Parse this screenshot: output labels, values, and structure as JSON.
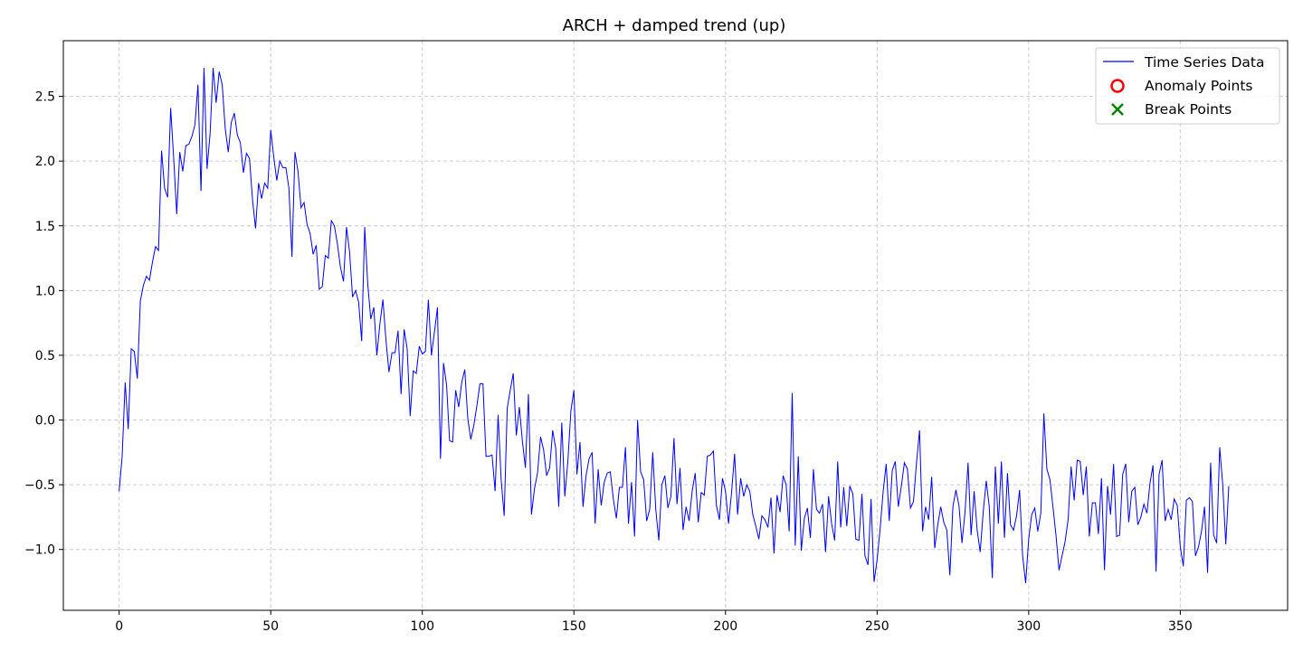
{
  "chart_data": {
    "type": "line",
    "title": "ARCH + damped trend (up)",
    "xlabel": "",
    "ylabel": "",
    "xlim": [
      -18.4,
      385.4
    ],
    "ylim": [
      -1.47,
      2.93
    ],
    "xticks": [
      0,
      50,
      100,
      150,
      200,
      250,
      300,
      350
    ],
    "yticks": [
      -1.0,
      -0.5,
      0.0,
      0.5,
      1.0,
      1.5,
      2.0,
      2.5
    ],
    "grid": true,
    "legend_position": "top-right",
    "colors": {
      "series": "#0000ff",
      "anomaly": "#ff0000",
      "break": "#008000",
      "grid": "#cccccc"
    },
    "legend": [
      {
        "label": "Time Series Data",
        "marker": "line"
      },
      {
        "label": "Anomaly Points",
        "marker": "circle"
      },
      {
        "label": "Break Points",
        "marker": "x"
      }
    ],
    "series": [
      {
        "name": "Time Series Data",
        "x_start": 0,
        "x_step": 1,
        "values": [
          -0.55,
          -0.28,
          0.29,
          -0.07,
          0.55,
          0.53,
          0.32,
          0.92,
          1.04,
          1.11,
          1.08,
          1.22,
          1.34,
          1.31,
          2.08,
          1.79,
          1.72,
          2.41,
          2.02,
          1.59,
          2.07,
          1.92,
          2.12,
          2.13,
          2.19,
          2.28,
          2.59,
          1.77,
          2.72,
          1.94,
          2.21,
          2.72,
          2.45,
          2.69,
          2.59,
          2.25,
          2.07,
          2.3,
          2.37,
          2.2,
          2.14,
          1.91,
          2.06,
          2.02,
          1.7,
          1.48,
          1.83,
          1.71,
          1.83,
          1.79,
          2.24,
          2.03,
          1.85,
          2.0,
          1.95,
          1.95,
          1.79,
          1.26,
          2.07,
          1.92,
          1.64,
          1.68,
          1.51,
          1.44,
          1.28,
          1.35,
          1.01,
          1.03,
          1.27,
          1.25,
          1.54,
          1.5,
          1.36,
          1.18,
          1.07,
          1.49,
          1.3,
          0.95,
          1.0,
          0.91,
          0.61,
          1.49,
          1.05,
          0.78,
          0.87,
          0.5,
          0.74,
          0.93,
          0.62,
          0.37,
          0.52,
          0.52,
          0.69,
          0.2,
          0.7,
          0.55,
          0.03,
          0.38,
          0.36,
          0.57,
          0.51,
          0.53,
          0.93,
          0.5,
          0.68,
          0.87,
          -0.3,
          0.44,
          0.27,
          -0.16,
          -0.17,
          0.23,
          0.1,
          0.29,
          0.39,
          0.01,
          -0.15,
          -0.04,
          0.11,
          0.28,
          0.28,
          -0.28,
          -0.28,
          -0.27,
          -0.55,
          0.04,
          -0.46,
          -0.74,
          0.09,
          0.23,
          0.36,
          -0.12,
          0.1,
          -0.16,
          -0.37,
          0.2,
          -0.73,
          -0.53,
          -0.41,
          -0.13,
          -0.23,
          -0.43,
          -0.37,
          -0.08,
          -0.22,
          -0.67,
          -0.02,
          -0.59,
          -0.32,
          0.07,
          0.23,
          -0.42,
          -0.17,
          -0.67,
          -0.43,
          -0.3,
          -0.25,
          -0.8,
          -0.38,
          -0.66,
          -0.48,
          -0.41,
          -0.4,
          -0.61,
          -0.76,
          -0.52,
          -0.52,
          -0.21,
          -0.8,
          -0.48,
          -0.9,
          0.0,
          -0.4,
          -0.46,
          -0.78,
          -0.69,
          -0.25,
          -0.69,
          -0.93,
          -0.5,
          -0.43,
          -0.68,
          -0.59,
          -0.14,
          -0.65,
          -0.37,
          -0.85,
          -0.67,
          -0.78,
          -0.55,
          -0.41,
          -0.79,
          -0.56,
          -0.58,
          -0.28,
          -0.27,
          -0.24,
          -0.66,
          -0.77,
          -0.45,
          -0.55,
          -0.8,
          -0.56,
          -0.26,
          -0.73,
          -0.45,
          -0.59,
          -0.5,
          -0.55,
          -0.73,
          -0.82,
          -0.92,
          -0.74,
          -0.77,
          -0.83,
          -0.6,
          -1.03,
          -0.58,
          -0.71,
          -0.43,
          -0.5,
          -0.86,
          0.21,
          -0.97,
          -0.28,
          -1.01,
          -0.76,
          -0.68,
          -0.91,
          -0.38,
          -0.69,
          -0.72,
          -0.65,
          -1.02,
          -0.59,
          -0.8,
          -0.93,
          -0.32,
          -0.83,
          -0.52,
          -0.82,
          -0.51,
          -0.57,
          -0.92,
          -0.93,
          -0.57,
          -1.05,
          -1.12,
          -0.61,
          -1.25,
          -1.08,
          -0.84,
          -0.55,
          -0.34,
          -0.78,
          -0.39,
          -0.32,
          -0.67,
          -0.51,
          -0.33,
          -0.38,
          -0.68,
          -0.63,
          -0.33,
          -0.08,
          -0.86,
          -0.67,
          -0.77,
          -0.44,
          -0.99,
          -0.81,
          -0.67,
          -0.79,
          -0.85,
          -1.2,
          -0.67,
          -0.54,
          -0.66,
          -0.95,
          -0.71,
          -0.33,
          -0.89,
          -0.55,
          -0.85,
          -1.02,
          -0.71,
          -0.47,
          -0.67,
          -1.22,
          -0.36,
          -0.8,
          -0.32,
          -0.91,
          -0.41,
          -0.81,
          -0.85,
          -0.74,
          -0.54,
          -1.05,
          -1.26,
          -0.92,
          -0.73,
          -0.68,
          -0.86,
          -0.72,
          0.05,
          -0.38,
          -0.46,
          -0.67,
          -0.89,
          -1.16,
          -1.05,
          -0.94,
          -0.77,
          -0.36,
          -0.62,
          -0.31,
          -0.32,
          -0.58,
          -0.36,
          -0.9,
          -0.64,
          -0.64,
          -0.88,
          -0.45,
          -1.16,
          -0.51,
          -0.73,
          -0.34,
          -0.9,
          -0.89,
          -0.42,
          -0.34,
          -0.79,
          -0.55,
          -0.52,
          -0.81,
          -0.75,
          -0.65,
          -0.72,
          -0.49,
          -0.35,
          -1.17,
          -0.42,
          -0.31,
          -0.78,
          -0.69,
          -0.77,
          -0.61,
          -0.66,
          -0.98,
          -1.13,
          -0.62,
          -0.6,
          -0.63,
          -1.05,
          -0.98,
          -0.86,
          -0.67,
          -1.18,
          -0.33,
          -0.89,
          -0.95,
          -0.21,
          -0.5,
          -0.96,
          -0.51
        ]
      }
    ],
    "anomaly_points": [],
    "break_points": []
  }
}
